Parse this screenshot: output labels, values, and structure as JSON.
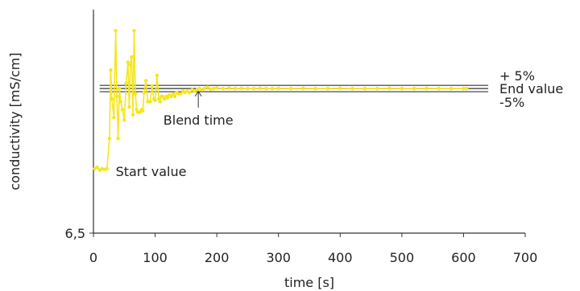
{
  "chart_data": {
    "type": "line",
    "xlabel": "time [s]",
    "ylabel": "conductivity [mS/cm]",
    "xlim": [
      0,
      700
    ],
    "ylim": [
      6.5,
      7.35
    ],
    "x_ticks": [
      0,
      100,
      200,
      300,
      400,
      500,
      600,
      700
    ],
    "x_tick_labels": [
      "0",
      "100",
      "200",
      "300",
      "400",
      "500",
      "600",
      "700"
    ],
    "y_ticks": [
      6.5
    ],
    "y_tick_labels": [
      "6,5"
    ],
    "grid": false,
    "series_color": "#f5e61e",
    "line_color": "#333333",
    "reference_lines": [
      {
        "label": "+ 5%",
        "y": 7.062
      },
      {
        "label": "End value",
        "y": 7.05
      },
      {
        "label": "-5%",
        "y": 7.038
      }
    ],
    "reference_x_range": [
      10,
      640
    ],
    "annotations": [
      {
        "text": "Start value",
        "x": 36,
        "y": 6.735
      },
      {
        "text": "Blend time",
        "x": 170,
        "y": 7.045,
        "arrow": true
      }
    ],
    "series": [
      {
        "x": [
          2,
          6,
          10,
          14,
          18,
          22,
          26,
          28,
          30,
          33,
          36,
          38,
          40,
          42,
          44,
          47,
          50,
          53,
          56,
          58,
          60,
          62,
          64,
          66,
          68,
          70,
          72,
          75,
          78,
          80,
          82,
          85,
          88,
          90,
          92,
          95,
          98,
          100,
          103,
          106,
          108,
          110,
          112,
          115,
          118,
          120,
          123,
          126,
          129,
          132,
          135,
          138,
          141,
          145,
          148,
          152,
          156,
          160,
          164,
          168,
          172,
          176,
          180,
          185,
          190,
          195,
          200,
          210,
          220,
          230,
          240,
          250,
          260,
          270,
          280,
          290,
          300,
          320,
          340,
          360,
          380,
          400,
          420,
          440,
          460,
          480,
          500,
          520,
          540,
          560,
          580,
          600,
          605
        ],
        "y": [
          6.745,
          6.75,
          6.74,
          6.745,
          6.742,
          6.745,
          6.86,
          7.12,
          7.01,
          6.94,
          7.27,
          7.02,
          6.86,
          7.05,
          7.0,
          6.97,
          6.93,
          7.07,
          7.15,
          6.98,
          7.14,
          7.17,
          6.95,
          7.27,
          7.03,
          6.97,
          6.96,
          6.96,
          6.97,
          6.965,
          7.035,
          7.08,
          7.0,
          7.0,
          7.0,
          7.06,
          7.01,
          7.005,
          7.1,
          7.01,
          7.0,
          7.02,
          7.02,
          7.01,
          7.02,
          7.015,
          7.025,
          7.02,
          7.03,
          7.02,
          7.035,
          7.03,
          7.03,
          7.04,
          7.035,
          7.04,
          7.035,
          7.045,
          7.04,
          7.045,
          7.05,
          7.045,
          7.05,
          7.055,
          7.048,
          7.05,
          7.052,
          7.05,
          7.052,
          7.05,
          7.051,
          7.05,
          7.05,
          7.051,
          7.05,
          7.05,
          7.051,
          7.05,
          7.051,
          7.05,
          7.05,
          7.051,
          7.05,
          7.05,
          7.05,
          7.051,
          7.05,
          7.05,
          7.051,
          7.05,
          7.05,
          7.05,
          7.05
        ]
      }
    ]
  }
}
